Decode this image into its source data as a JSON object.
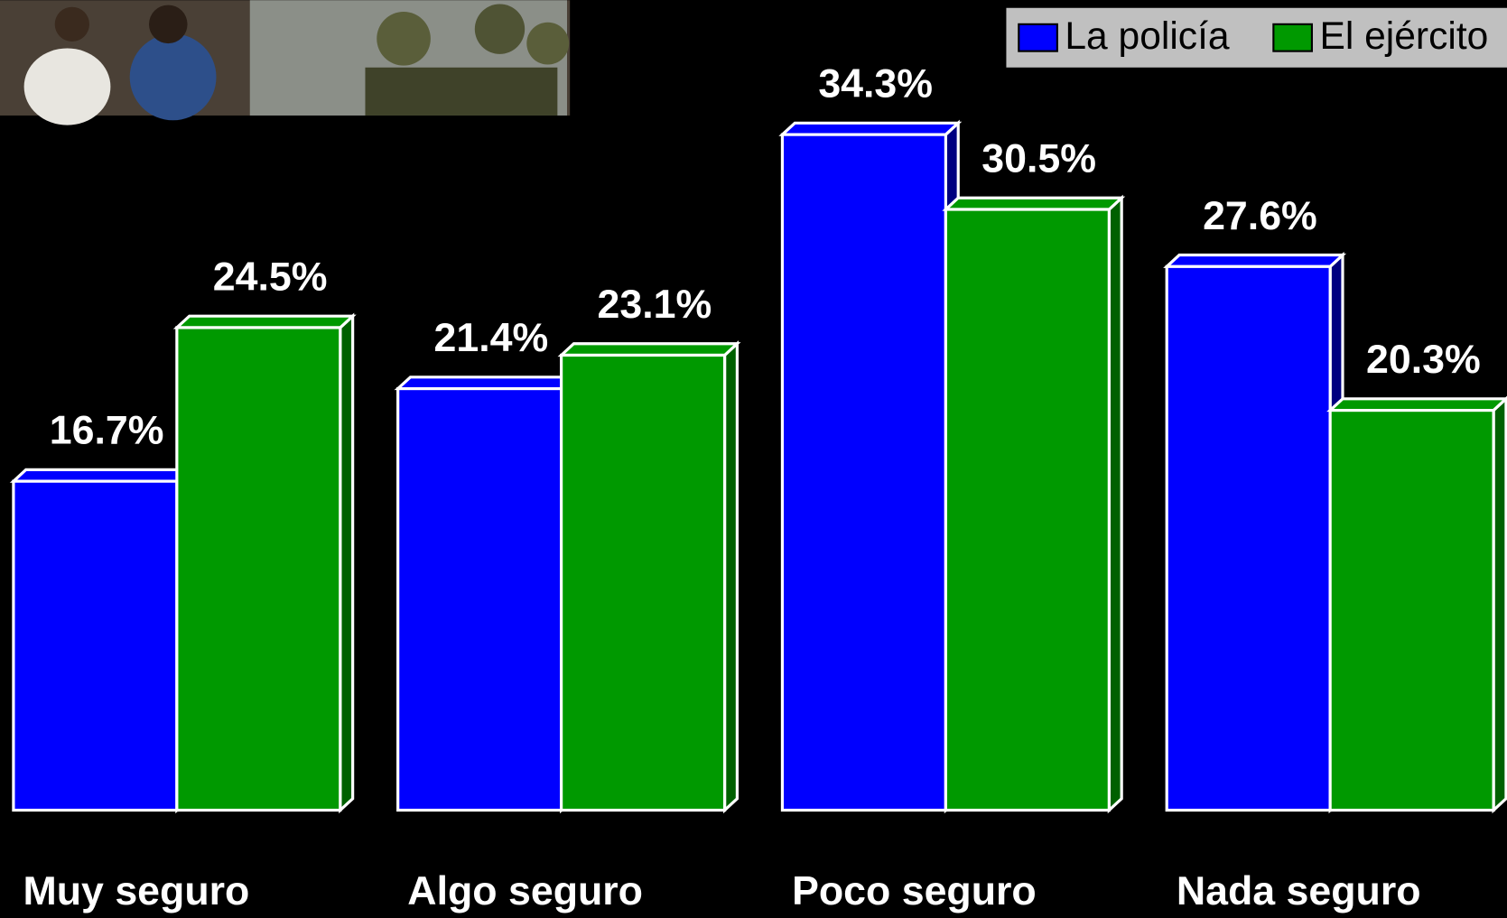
{
  "chart_data": {
    "type": "bar3d",
    "categories": [
      "Muy seguro",
      "Algo seguro",
      "Poco seguro",
      "Nada seguro"
    ],
    "series": [
      {
        "name": "La policía",
        "color": "#0000ff",
        "values": [
          16.7,
          21.4,
          34.3,
          27.6
        ],
        "value_labels": [
          "16.7%",
          "21.4%",
          "34.3%",
          "27.6%"
        ]
      },
      {
        "name": "El ejército",
        "color": "#009900",
        "values": [
          24.5,
          23.1,
          30.5,
          20.3
        ],
        "value_labels": [
          "24.5%",
          "23.1%",
          "30.5%",
          "20.3%"
        ]
      }
    ],
    "legend": "top-right"
  }
}
